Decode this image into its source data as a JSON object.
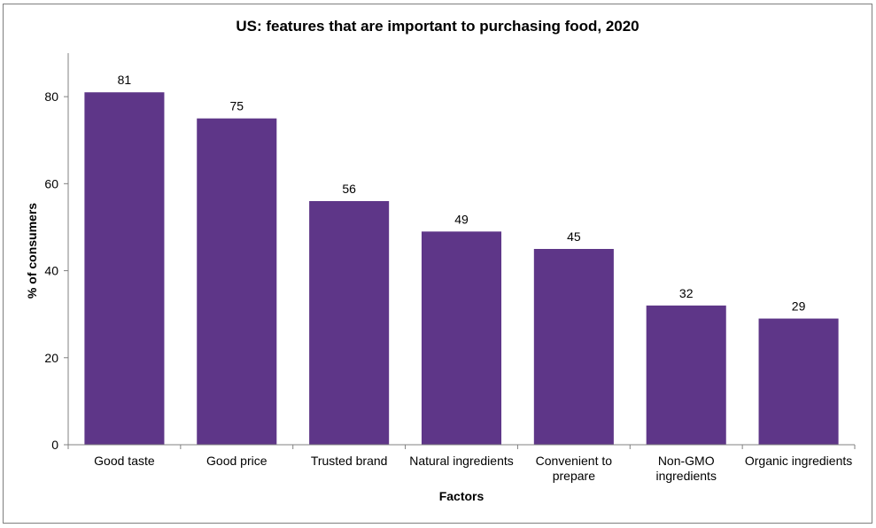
{
  "chart_data": {
    "type": "bar",
    "title": "US: features that are important to purchasing food, 2020",
    "xlabel": "Factors",
    "ylabel": "% of consumers",
    "categories": [
      [
        "Good taste"
      ],
      [
        "Good price"
      ],
      [
        "Trusted brand"
      ],
      [
        "Natural ingredients"
      ],
      [
        "Convenient to",
        "prepare"
      ],
      [
        "Non-GMO",
        "ingredients"
      ],
      [
        "Organic ingredients"
      ]
    ],
    "values": [
      81,
      75,
      56,
      49,
      45,
      32,
      29
    ],
    "ylim": [
      0,
      90
    ],
    "yticks": [
      0,
      20,
      40,
      60,
      80
    ],
    "grid": false,
    "legend": "none",
    "bar_color": "#5e3688"
  }
}
